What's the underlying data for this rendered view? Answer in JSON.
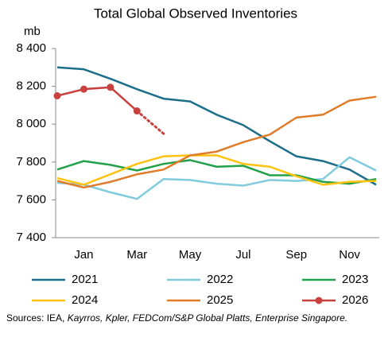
{
  "chart_data": {
    "type": "line",
    "title": "Total Global Observed Inventories",
    "y_unit": "mb",
    "categories": [
      null,
      "Jan",
      null,
      "Mar",
      null,
      "May",
      null,
      "Jul",
      null,
      "Sep",
      null,
      "Nov",
      null
    ],
    "series": [
      {
        "name": "2021",
        "color": "#1d6e8a",
        "values": [
          8300,
          8290,
          8240,
          8185,
          8135,
          8120,
          8050,
          7995,
          7910,
          7830,
          7805,
          7760,
          7680
        ]
      },
      {
        "name": "2022",
        "color": "#80cbdc",
        "values": [
          7690,
          7680,
          7640,
          7605,
          7710,
          7705,
          7685,
          7675,
          7705,
          7700,
          7710,
          7825,
          7755
        ]
      },
      {
        "name": "2023",
        "color": "#22a04a",
        "values": [
          7760,
          7805,
          7785,
          7755,
          7790,
          7810,
          7775,
          7780,
          7730,
          7730,
          7695,
          7685,
          7710
        ]
      },
      {
        "name": "2024",
        "color": "#ffc20e",
        "values": [
          7715,
          7680,
          7735,
          7790,
          7830,
          7835,
          7835,
          7790,
          7775,
          7725,
          7680,
          7695,
          7700
        ]
      },
      {
        "name": "2025",
        "color": "#e07b28",
        "values": [
          7700,
          7665,
          7695,
          7735,
          7760,
          7835,
          7855,
          7905,
          7945,
          8035,
          8050,
          8125,
          8145
        ]
      },
      {
        "name": "2026",
        "color": "#c8413f",
        "markers": true,
        "dashed_from": 3,
        "values": [
          8150,
          8185,
          8195,
          8070,
          7950,
          null,
          null,
          null,
          null,
          null,
          null,
          null,
          null
        ]
      }
    ],
    "ylim": [
      7400,
      8400
    ],
    "yticks": [
      {
        "value": 7400,
        "label": "7 400"
      },
      {
        "value": 7600,
        "label": "7 600"
      },
      {
        "value": 7800,
        "label": "7 800"
      },
      {
        "value": 8000,
        "label": "8 000"
      },
      {
        "value": 8200,
        "label": "8 200"
      },
      {
        "value": 8400,
        "label": "8 400"
      }
    ],
    "grid": false,
    "legend": "bottom",
    "source": [
      "Sources: IEA, ",
      "Kayrros, Kpler, FEDCom/S&P Global Platts, Enterprise Singapore."
    ]
  }
}
